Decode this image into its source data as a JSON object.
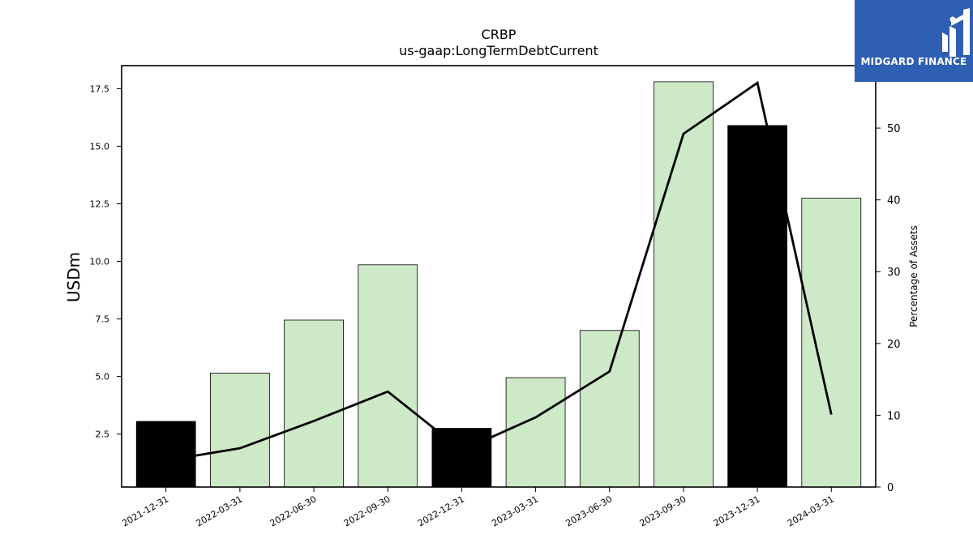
{
  "chart_data": {
    "type": "bar",
    "title": "CRBP",
    "subtitle": "us-gaap:LongTermDebtCurrent",
    "ylabel": "USDm",
    "y2label": "Percentage of Assets",
    "categories": [
      "2021-12-31",
      "2022-03-31",
      "2022-06-30",
      "2022-09-30",
      "2022-12-31",
      "2023-03-31",
      "2023-06-30",
      "2023-09-30",
      "2023-12-31",
      "2024-03-31"
    ],
    "series": [
      {
        "values": [
          3.05,
          5.15,
          7.45,
          9.85,
          2.75,
          4.95,
          7.0,
          17.8,
          15.9,
          12.75
        ],
        "fill_colors": [
          "#000000",
          "#cde9c7",
          "#cde9c7",
          "#cde9c7",
          "#000000",
          "#cde9c7",
          "#cde9c7",
          "#cde9c7",
          "#000000",
          "#cde9c7"
        ]
      },
      {
        "type": "line",
        "axis": "right",
        "values": [
          3.7,
          5.4,
          9.2,
          13.3,
          5.1,
          9.7,
          16.1,
          49.2,
          56.3,
          10.1
        ],
        "color": "#000000"
      }
    ],
    "ylim": [
      0.2,
      18.5
    ],
    "y2lim": [
      0,
      58.7
    ],
    "yticks": [
      2.5,
      5.0,
      7.5,
      10.0,
      12.5,
      15.0,
      17.5
    ],
    "ytick_labels": [
      "2.5",
      "5.0",
      "7.5",
      "10.0",
      "12.5",
      "15.0",
      "17.5"
    ],
    "y2ticks": [
      0,
      10,
      20,
      30,
      40,
      50
    ],
    "y2tick_labels": [
      "0",
      "10",
      "20",
      "30",
      "40",
      "50"
    ],
    "grid": false,
    "legend": "none"
  },
  "logo": {
    "text": "MIDGARD FINANCE",
    "color": "#2f5fb3"
  }
}
